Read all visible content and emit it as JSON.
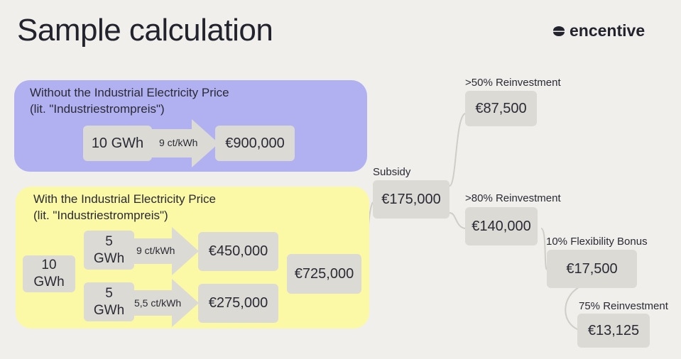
{
  "header": {
    "title": "Sample calculation",
    "brand": "encentive"
  },
  "without": {
    "heading": "Without the Industrial Electricity Price",
    "subheading": "(lit. \"Industriestrompreis\")",
    "volume": "10 GWh",
    "rate": "9 ct/kWh",
    "cost": "€900,000"
  },
  "with": {
    "heading": "With the Industrial Electricity Price",
    "subheading": "(lit. \"Industriestrompreis\")",
    "total_volume_line1": "10",
    "total_volume_line2": "GWh",
    "split_a_line1": "5",
    "split_a_line2": "GWh",
    "split_a_rate": "9 ct/kWh",
    "split_a_cost": "€450,000",
    "split_b_line1": "5",
    "split_b_line2": "GWh",
    "split_b_rate": "5,5 ct/kWh",
    "split_b_cost": "€275,000",
    "total_cost": "€725,000"
  },
  "flow": {
    "subsidy_label": "Subsidy",
    "subsidy_value": "€175,000",
    "reinvest50_label": ">50% Reinvestment",
    "reinvest50_value": "€87,500",
    "reinvest80_label": ">80% Reinvestment",
    "reinvest80_value": "€140,000",
    "flex_label": "10% Flexibility Bonus",
    "flex_value": "€17,500",
    "reinvest75_label": "75% Reinvestment",
    "reinvest75_value": "€13,125"
  }
}
